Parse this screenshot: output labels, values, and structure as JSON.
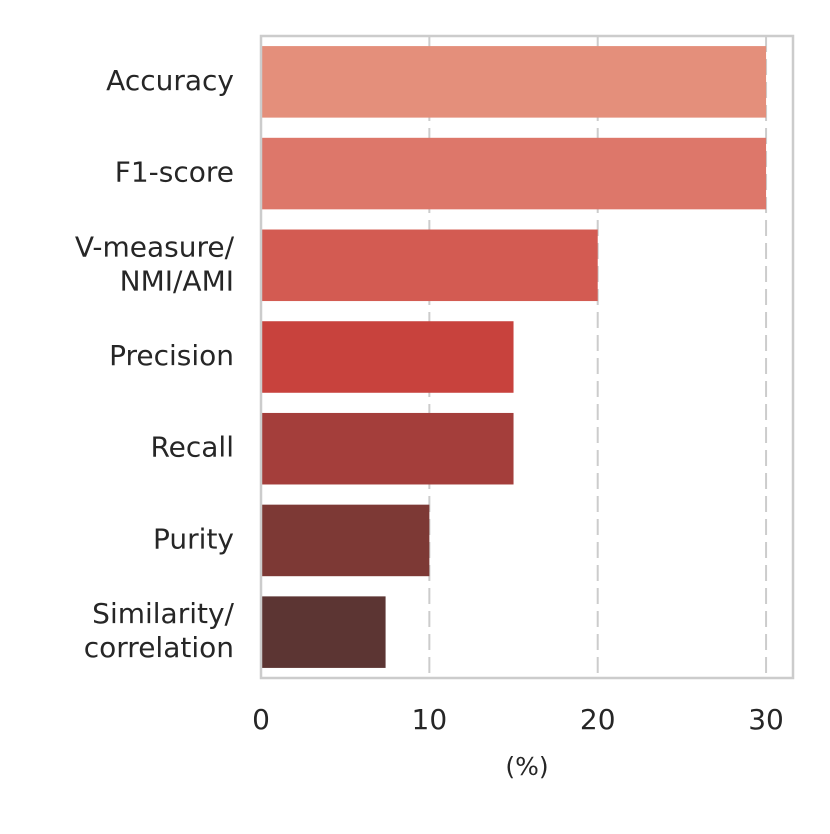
{
  "chart_data": {
    "type": "bar",
    "orientation": "horizontal",
    "categories": [
      "Accuracy",
      "F1-score",
      "V-measure/\nNMI/AMI",
      "Precision",
      "Recall",
      "Purity",
      "Similarity/\ncorrelation"
    ],
    "values": [
      30,
      30,
      20,
      15,
      15,
      10,
      7.4
    ],
    "colors": [
      "#e48f7b",
      "#dd776a",
      "#d35b52",
      "#c8423d",
      "#a43e3b",
      "#7d3935",
      "#5c3533"
    ],
    "xlabel": "(%)",
    "xlim": [
      0,
      31.6
    ],
    "xticks": [
      0,
      10,
      20,
      30
    ],
    "grid": true
  }
}
